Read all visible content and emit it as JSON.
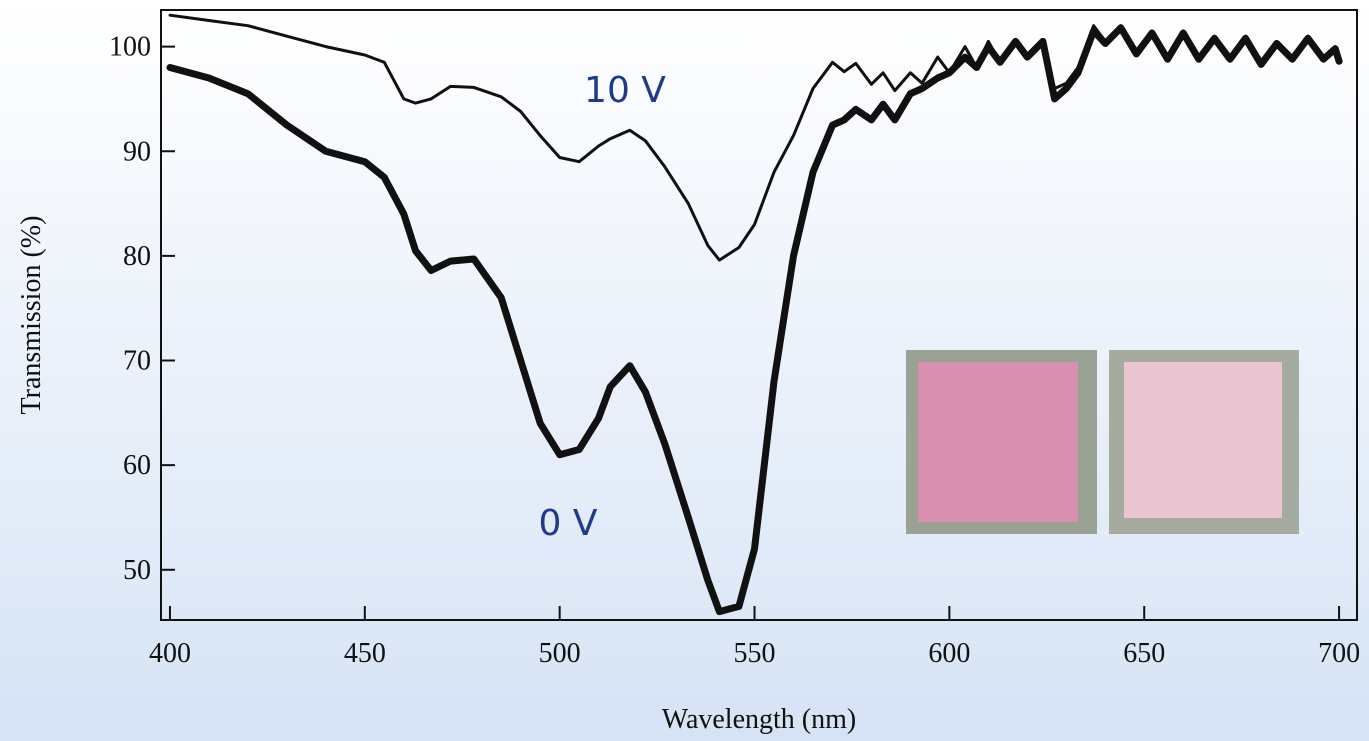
{
  "chart_data": {
    "type": "line",
    "x_label": "Wavelength (nm)",
    "y_label": "Transmission (%)",
    "x": [
      400,
      410,
      420,
      430,
      440,
      450,
      455,
      460,
      463,
      467,
      472,
      478,
      485,
      490,
      495,
      500,
      505,
      510,
      513,
      518,
      522,
      527,
      533,
      538,
      541,
      546,
      550,
      555,
      560,
      565,
      570,
      573,
      576,
      580,
      583,
      586,
      590,
      593,
      597,
      600,
      604,
      607,
      610,
      613,
      617,
      620,
      624,
      627,
      630,
      633,
      637,
      640,
      644,
      648,
      652,
      656,
      660,
      664,
      668,
      672,
      676,
      680,
      684,
      688,
      692,
      696,
      699,
      700
    ],
    "series": [
      {
        "name": "10 V",
        "color": "#111111",
        "width": 3,
        "values": [
          103,
          102.5,
          102,
          101,
          100,
          99.2,
          98.5,
          95,
          94.6,
          95,
          96.2,
          96.1,
          95.2,
          93.8,
          91.5,
          89.4,
          89,
          90.5,
          91.2,
          92,
          91,
          88.5,
          85,
          81,
          79.6,
          80.8,
          83,
          88,
          91.5,
          96,
          98.5,
          97.6,
          98.4,
          96.4,
          97.5,
          95.8,
          97.5,
          96.5,
          99,
          97.5,
          100,
          98,
          100.5,
          98.5,
          100.5,
          99,
          100.5,
          96,
          96.5,
          98,
          102,
          100.5,
          102,
          99.5,
          101.5,
          99,
          101.5,
          99,
          101,
          99,
          101,
          98.5,
          100.5,
          99,
          101,
          99,
          100,
          98.8
        ]
      },
      {
        "name": "0 V",
        "color": "#111111",
        "width": 7,
        "values": [
          98,
          97,
          95.5,
          92.5,
          90,
          89,
          87.5,
          84,
          80.5,
          78.6,
          79.5,
          79.7,
          76,
          70,
          64,
          61,
          61.5,
          64.5,
          67.5,
          69.5,
          67,
          62,
          55,
          49,
          46,
          46.5,
          52,
          68,
          80,
          88,
          92.5,
          93,
          94,
          93,
          94.5,
          93,
          95.5,
          96,
          97,
          97.5,
          99,
          98,
          100,
          98.5,
          100.5,
          99,
          100.5,
          95,
          96,
          97.5,
          101.5,
          100.3,
          101.8,
          99.3,
          101.3,
          98.8,
          101.3,
          98.8,
          100.8,
          98.8,
          100.8,
          98.3,
          100.3,
          98.8,
          100.8,
          98.8,
          99.8,
          98.6
        ]
      }
    ],
    "xlim": [
      397.7,
      704.6
    ],
    "xticks": [
      400,
      450,
      500,
      550,
      600,
      650,
      700
    ],
    "ylim": [
      45.2,
      103.5
    ],
    "yticks": [
      50,
      60,
      70,
      80,
      90,
      100
    ]
  }
}
